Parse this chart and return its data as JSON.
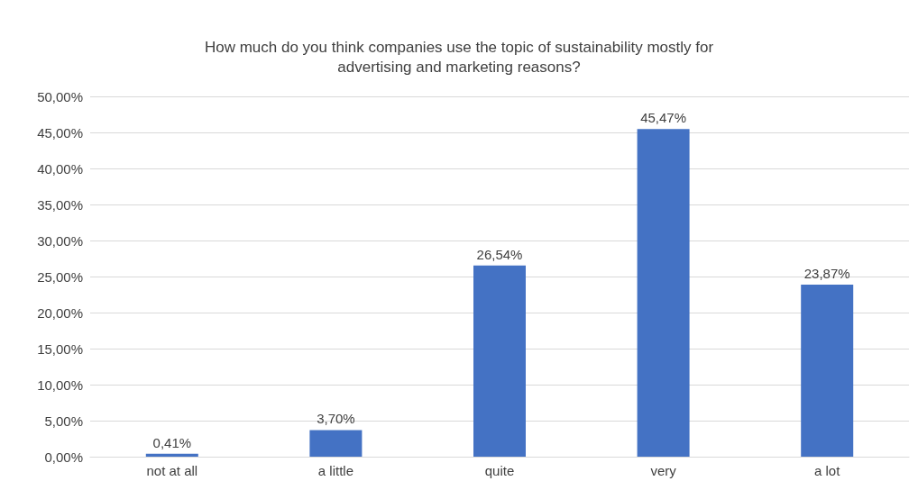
{
  "chart_data": {
    "type": "bar",
    "title": "How much do you think companies use the topic of sustainability mostly for\nadvertising and marketing reasons?",
    "categories": [
      "not at all",
      "a little",
      "quite",
      "very",
      "a lot"
    ],
    "values": [
      0.41,
      3.7,
      26.54,
      45.47,
      23.87
    ],
    "value_labels": [
      "0,41%",
      "3,70%",
      "26,54%",
      "45,47%",
      "23,87%"
    ],
    "color": "#4472c4",
    "ylim": [
      0,
      50
    ],
    "yticks": [
      {
        "value": 0,
        "label": "0,00%"
      },
      {
        "value": 5,
        "label": "5,00%"
      },
      {
        "value": 10,
        "label": "10,00%"
      },
      {
        "value": 15,
        "label": "15,00%"
      },
      {
        "value": 20,
        "label": "20,00%"
      },
      {
        "value": 25,
        "label": "25,00%"
      },
      {
        "value": 30,
        "label": "30,00%"
      },
      {
        "value": 35,
        "label": "35,00%"
      },
      {
        "value": 40,
        "label": "40,00%"
      },
      {
        "value": 45,
        "label": "45,00%"
      },
      {
        "value": 50,
        "label": "50,00%"
      }
    ],
    "grid": true
  }
}
